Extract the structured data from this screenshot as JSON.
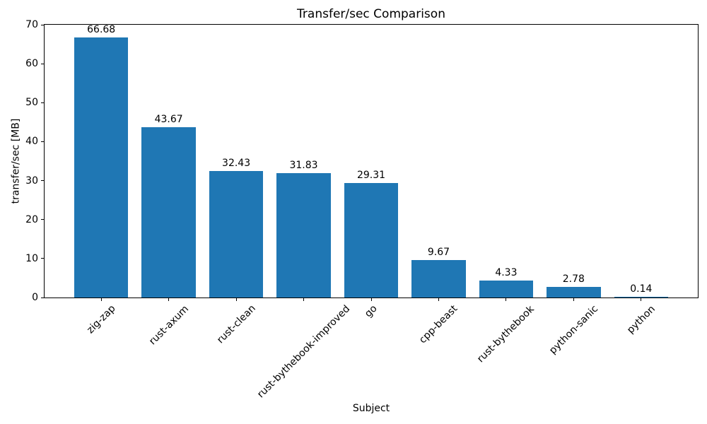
{
  "chart_data": {
    "type": "bar",
    "title": "Transfer/sec Comparison",
    "xlabel": "Subject",
    "ylabel": "transfer/sec [MB]",
    "categories": [
      "zig-zap",
      "rust-axum",
      "rust-clean",
      "rust-bythebook-improved",
      "go",
      "cpp-beast",
      "rust-bythebook",
      "python-sanic",
      "python"
    ],
    "values": [
      66.68,
      43.67,
      32.43,
      31.83,
      29.31,
      9.67,
      4.33,
      2.78,
      0.14
    ],
    "value_labels": [
      "66.68",
      "43.67",
      "32.43",
      "31.83",
      "29.31",
      "9.67",
      "4.33",
      "2.78",
      "0.14"
    ],
    "ylim": [
      0,
      70
    ],
    "yticks": [
      0,
      10,
      20,
      30,
      40,
      50,
      60,
      70
    ],
    "bar_color": "#1f77b4",
    "bar_width_fraction": 0.8,
    "grid": false,
    "legend": null,
    "x_tick_rotation_deg": 45
  }
}
